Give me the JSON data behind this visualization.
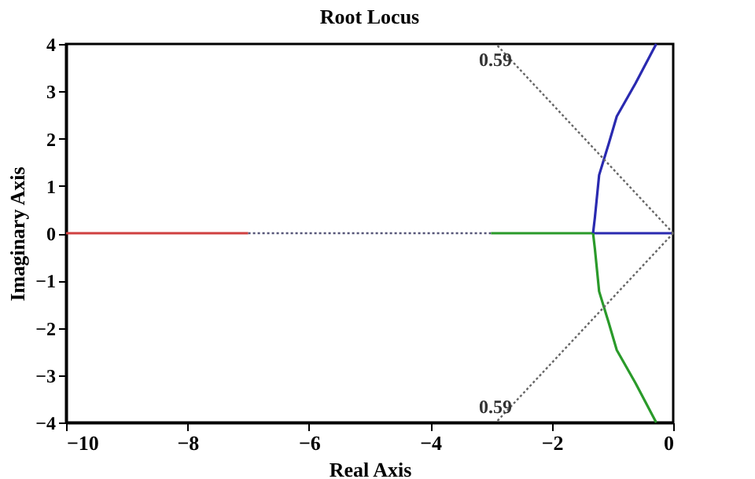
{
  "chart_data": {
    "type": "line",
    "title": "Root Locus",
    "xlabel": "Real Axis",
    "ylabel": "Imaginary Axis",
    "xlim": [
      -10,
      0
    ],
    "ylim": [
      -4,
      4
    ],
    "xticks": [
      -10,
      -8,
      -6,
      -4,
      -2,
      0
    ],
    "yticks": [
      -4,
      -3,
      -2,
      -1,
      0,
      1,
      2,
      3,
      4
    ],
    "grid": false,
    "series": [
      {
        "color": "#d04040",
        "line_style": "solid",
        "x": [
          -10,
          -7
        ],
        "values": [
          0,
          0
        ]
      },
      {
        "color": "#555577",
        "line_style": "dotted",
        "x": [
          -7,
          -3
        ],
        "values": [
          0,
          0
        ]
      },
      {
        "color": "#2a9a2a",
        "line_style": "solid",
        "x": [
          -3,
          -1.32
        ],
        "values": [
          0,
          0
        ]
      },
      {
        "color": "#2a2ab0",
        "line_style": "solid",
        "x": [
          -1.32,
          0
        ],
        "values": [
          0,
          0
        ]
      },
      {
        "color": "#2a2ab0",
        "line_style": "solid",
        "x": [
          -1.32,
          -1.29,
          -1.22,
          -1.06,
          -0.93,
          -0.62,
          -0.28
        ],
        "values": [
          0,
          0.33,
          1.23,
          1.9,
          2.47,
          3.17,
          4
        ]
      },
      {
        "color": "#2a9a2a",
        "line_style": "solid",
        "x": [
          -1.32,
          -1.29,
          -1.22,
          -1.06,
          -0.93,
          -0.62,
          -0.28
        ],
        "values": [
          0,
          -0.33,
          -1.23,
          -1.9,
          -2.47,
          -3.17,
          -4
        ]
      },
      {
        "color": "#666666",
        "line_style": "dotted",
        "x": [
          0,
          -2.92
        ],
        "values": [
          0,
          4
        ]
      },
      {
        "color": "#666666",
        "line_style": "dotted",
        "x": [
          0,
          -2.92
        ],
        "values": [
          0,
          -4
        ]
      }
    ],
    "annotations": [
      "0.59",
      "0.59"
    ]
  }
}
